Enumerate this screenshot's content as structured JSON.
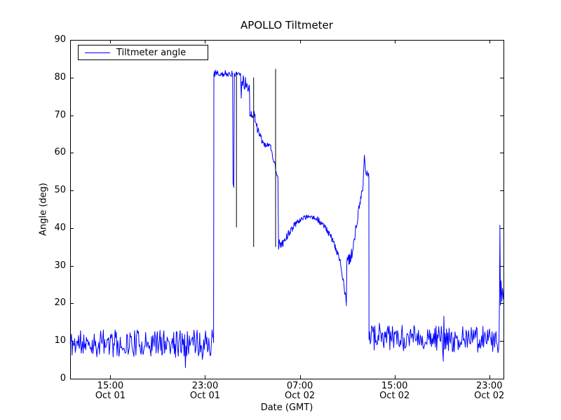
{
  "chart_data": {
    "type": "line",
    "title": "APOLLO Tiltmeter",
    "xlabel": "Date (GMT)",
    "ylabel": "Angle (deg)",
    "ylim": [
      0,
      90
    ],
    "xlim_hours": [
      11.6,
      48.2
    ],
    "x_unit": "hours since Oct 01 00:00 GMT",
    "grid": false,
    "background": "#ffffff",
    "axis_color": "#000000",
    "line_color": "#0000ff",
    "event_line_color": "#000000",
    "yticks": [
      0,
      10,
      20,
      30,
      40,
      50,
      60,
      70,
      80,
      90
    ],
    "xticks": [
      {
        "hours": 15,
        "time": "15:00",
        "date": "Oct 01"
      },
      {
        "hours": 23,
        "time": "23:00",
        "date": "Oct 01"
      },
      {
        "hours": 31,
        "time": "07:00",
        "date": "Oct 02"
      },
      {
        "hours": 39,
        "time": "15:00",
        "date": "Oct 02"
      },
      {
        "hours": 47,
        "time": "23:00",
        "date": "Oct 02"
      }
    ],
    "legend": {
      "label": "Tiltmeter angle",
      "position": "upper left"
    },
    "series": [
      {
        "name": "Tiltmeter angle",
        "segments": [
          {
            "kind": "noise",
            "x_start": 11.6,
            "x_end": 23.72,
            "y_start": 9.3,
            "y_end": 9.6,
            "amplitude": 3.6,
            "step": 0.055,
            "seed": 11
          },
          {
            "kind": "points",
            "points": [
              [
                23.72,
                12
              ],
              [
                23.74,
                80.0
              ]
            ]
          },
          {
            "kind": "noise",
            "x_start": 23.74,
            "x_end": 25.32,
            "y_start": 81.0,
            "y_end": 81.0,
            "amplitude": 0.8,
            "step": 0.04,
            "seed": 12
          },
          {
            "kind": "points",
            "points": [
              [
                25.32,
                81
              ],
              [
                25.36,
                52
              ],
              [
                25.42,
                50.8
              ],
              [
                25.47,
                80.8
              ]
            ]
          },
          {
            "kind": "noise",
            "x_start": 25.47,
            "x_end": 26.0,
            "y_start": 81.1,
            "y_end": 81.1,
            "amplitude": 0.5,
            "step": 0.04,
            "seed": 13
          },
          {
            "kind": "points",
            "points": [
              [
                26.0,
                81
              ],
              [
                26.05,
                74.5
              ],
              [
                26.1,
                78.5
              ]
            ]
          },
          {
            "kind": "noise",
            "x_start": 26.1,
            "x_end": 26.74,
            "y_start": 79.0,
            "y_end": 77.5,
            "amplitude": 1.6,
            "step": 0.04,
            "seed": 14
          },
          {
            "kind": "points",
            "points": [
              [
                26.74,
                78
              ],
              [
                26.78,
                70.5
              ]
            ]
          },
          {
            "kind": "noise",
            "x_start": 26.78,
            "x_end": 27.22,
            "y_start": 70.2,
            "y_end": 70.2,
            "amplitude": 0.9,
            "step": 0.04,
            "seed": 15
          },
          {
            "kind": "noise",
            "x_start": 27.22,
            "x_end": 28.06,
            "y_start": 68.0,
            "y_end": 61.5,
            "amplitude": 1.1,
            "step": 0.04,
            "seed": 16
          },
          {
            "kind": "noise",
            "x_start": 28.06,
            "x_end": 28.55,
            "y_start": 62.3,
            "y_end": 62.0,
            "amplitude": 0.8,
            "step": 0.04,
            "seed": 17
          },
          {
            "kind": "noise",
            "x_start": 28.55,
            "x_end": 29.1,
            "y_start": 61.0,
            "y_end": 54.0,
            "amplitude": 0.8,
            "step": 0.04,
            "seed": 18
          },
          {
            "kind": "points",
            "points": [
              [
                29.1,
                54
              ],
              [
                29.15,
                53.5
              ],
              [
                29.2,
                35.8
              ]
            ]
          },
          {
            "kind": "noise",
            "x_start": 29.2,
            "x_end": 29.6,
            "y_start": 35.5,
            "y_end": 36.3,
            "amplitude": 1.3,
            "step": 0.035,
            "seed": 19
          },
          {
            "kind": "noise",
            "x_start": 29.6,
            "x_end": 30.7,
            "y_start": 36.3,
            "y_end": 41.5,
            "amplitude": 1.0,
            "step": 0.035,
            "seed": 20
          },
          {
            "kind": "noise",
            "x_start": 30.7,
            "x_end": 31.7,
            "y_start": 41.5,
            "y_end": 43.3,
            "amplitude": 0.7,
            "step": 0.035,
            "seed": 21
          },
          {
            "kind": "noise",
            "x_start": 31.7,
            "x_end": 32.4,
            "y_start": 43.3,
            "y_end": 42.7,
            "amplitude": 0.6,
            "step": 0.035,
            "seed": 22
          },
          {
            "kind": "noise",
            "x_start": 32.4,
            "x_end": 33.5,
            "y_start": 42.7,
            "y_end": 38.8,
            "amplitude": 0.8,
            "step": 0.035,
            "seed": 23
          },
          {
            "kind": "noise",
            "x_start": 33.5,
            "x_end": 34.4,
            "y_start": 38.8,
            "y_end": 31.5,
            "amplitude": 0.9,
            "step": 0.035,
            "seed": 24
          },
          {
            "kind": "noise",
            "x_start": 34.4,
            "x_end": 34.93,
            "y_start": 31.5,
            "y_end": 20.2,
            "amplitude": 1.0,
            "step": 0.03,
            "seed": 25
          },
          {
            "kind": "points",
            "points": [
              [
                34.93,
                19.4
              ],
              [
                34.97,
                30.5
              ]
            ]
          },
          {
            "kind": "noise",
            "x_start": 34.97,
            "x_end": 35.4,
            "y_start": 31.0,
            "y_end": 33.0,
            "amplitude": 1.7,
            "step": 0.035,
            "seed": 26
          },
          {
            "kind": "noise",
            "x_start": 35.4,
            "x_end": 36.35,
            "y_start": 33.5,
            "y_end": 52.0,
            "amplitude": 1.4,
            "step": 0.035,
            "seed": 27
          },
          {
            "kind": "points",
            "points": [
              [
                36.35,
                52.5
              ],
              [
                36.4,
                56
              ],
              [
                36.45,
                59.4
              ],
              [
                36.5,
                57.5
              ],
              [
                36.55,
                55
              ],
              [
                36.62,
                54
              ],
              [
                36.68,
                55.2
              ],
              [
                36.74,
                53.8
              ],
              [
                36.8,
                54.6
              ],
              [
                36.83,
                53.5
              ],
              [
                36.84,
                11.5
              ]
            ]
          },
          {
            "kind": "noise",
            "x_start": 36.84,
            "x_end": 47.82,
            "y_start": 10.8,
            "y_end": 10.4,
            "amplitude": 3.5,
            "step": 0.055,
            "seed": 28
          },
          {
            "kind": "points",
            "points": [
              [
                47.82,
                9.5
              ],
              [
                47.86,
                21
              ],
              [
                47.9,
                40.8
              ],
              [
                47.94,
                19.5
              ],
              [
                48.0,
                26
              ],
              [
                48.06,
                20.5
              ],
              [
                48.12,
                24
              ],
              [
                48.2,
                21
              ]
            ]
          }
        ]
      }
    ],
    "event_lines": [
      {
        "x": 25.65,
        "y0": 40.2,
        "y1": 81.3
      },
      {
        "x": 27.1,
        "y0": 35.0,
        "y1": 80.0
      },
      {
        "x": 28.95,
        "y0": 35.0,
        "y1": 82.3
      }
    ]
  }
}
